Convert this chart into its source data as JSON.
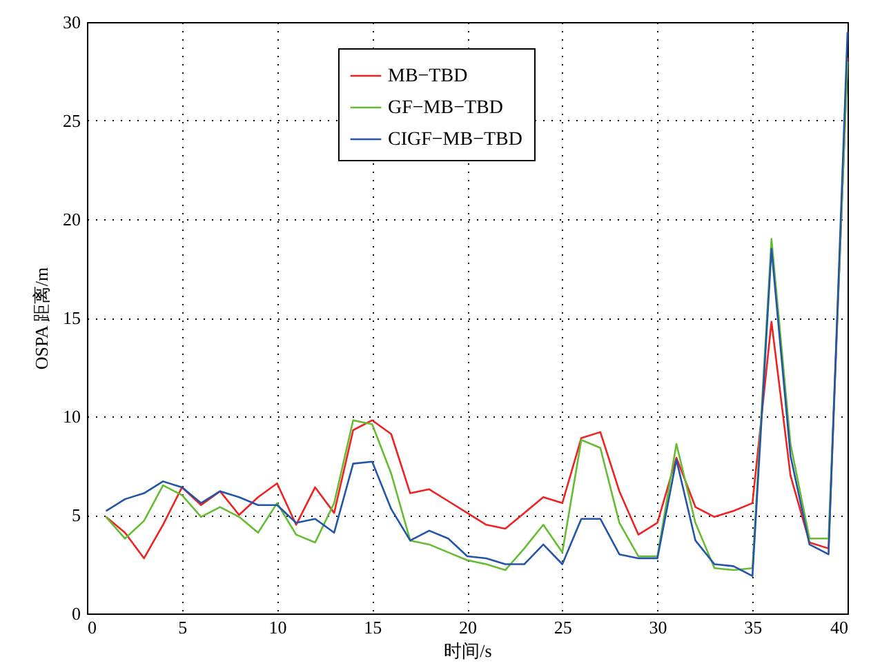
{
  "chart_data": {
    "type": "line",
    "xlabel": "时间/s",
    "ylabel": "OSPA 距离/m",
    "x": [
      1,
      2,
      3,
      4,
      5,
      6,
      7,
      8,
      9,
      10,
      11,
      12,
      13,
      14,
      15,
      16,
      17,
      18,
      19,
      20,
      21,
      22,
      23,
      24,
      25,
      26,
      27,
      28,
      29,
      30,
      31,
      32,
      33,
      34,
      35,
      36,
      37,
      38,
      39,
      40
    ],
    "xlim": [
      0,
      40
    ],
    "xticks": [
      0,
      5,
      10,
      15,
      20,
      25,
      30,
      35,
      40
    ],
    "ylim": [
      0,
      30
    ],
    "yticks": [
      0,
      5,
      10,
      15,
      20,
      25,
      30
    ],
    "grid": true,
    "legend": "top",
    "series": [
      {
        "name": "MB−TBD",
        "color": "#ee2222",
        "values": [
          4.9,
          4.1,
          2.8,
          4.5,
          6.4,
          5.5,
          6.2,
          5.0,
          5.9,
          6.6,
          4.5,
          6.4,
          5.1,
          9.3,
          9.8,
          9.1,
          6.1,
          6.3,
          5.7,
          5.1,
          4.5,
          4.3,
          5.1,
          5.9,
          5.6,
          8.9,
          9.2,
          6.2,
          4.0,
          4.6,
          7.9,
          5.4,
          4.9,
          5.2,
          5.6,
          14.8,
          7.0,
          3.6,
          3.3,
          28.2
        ]
      },
      {
        "name": "GF−MB−TBD",
        "color": "#66bb33",
        "values": [
          4.9,
          3.8,
          4.7,
          6.5,
          6.0,
          4.9,
          5.4,
          4.9,
          4.1,
          5.6,
          4.0,
          3.6,
          5.6,
          9.8,
          9.6,
          7.1,
          3.7,
          3.5,
          3.1,
          2.7,
          2.5,
          2.2,
          3.3,
          4.5,
          3.1,
          8.8,
          8.4,
          4.6,
          2.9,
          2.9,
          8.6,
          4.6,
          2.3,
          2.2,
          2.3,
          19.0,
          8.6,
          3.8,
          3.8,
          28.0
        ]
      },
      {
        "name": "CIGF−MB−TBD",
        "color": "#2255aa",
        "values": [
          5.2,
          5.8,
          6.1,
          6.7,
          6.4,
          5.6,
          6.2,
          5.9,
          5.5,
          5.5,
          4.6,
          4.8,
          4.1,
          7.6,
          7.7,
          5.3,
          3.7,
          4.2,
          3.8,
          2.9,
          2.8,
          2.5,
          2.5,
          3.5,
          2.5,
          4.8,
          4.8,
          3.0,
          2.8,
          2.8,
          7.8,
          3.7,
          2.5,
          2.4,
          1.9,
          18.5,
          8.0,
          3.5,
          3.0,
          29.5
        ]
      }
    ]
  }
}
